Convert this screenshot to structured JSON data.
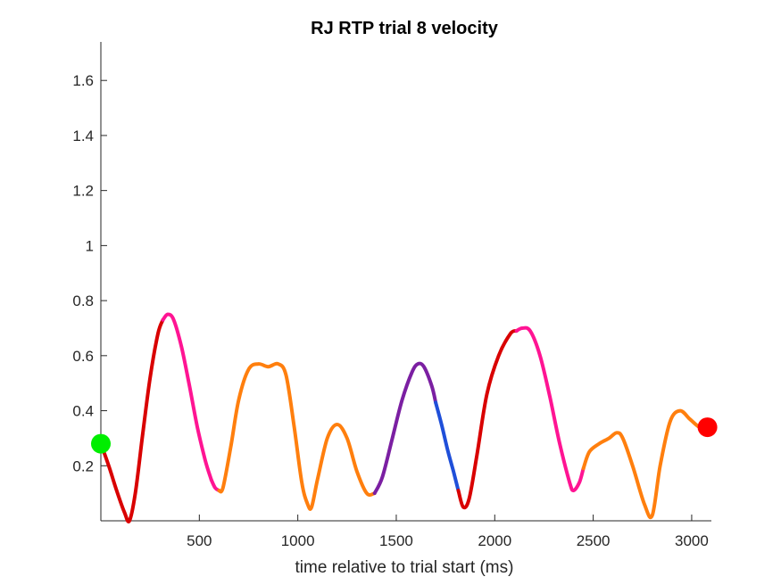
{
  "chart_data": {
    "type": "line",
    "title": "RJ  RTP trial 8 velocity",
    "xlabel": "time relative to trial start (ms)",
    "ylabel": "",
    "xlim": [
      0,
      3100
    ],
    "ylim": [
      0,
      1.74
    ],
    "x_ticks": [
      500,
      1000,
      1500,
      2000,
      2500,
      3000
    ],
    "y_ticks": [
      0.2,
      0.4,
      0.6,
      0.8,
      1,
      1.2,
      1.4,
      1.6
    ],
    "x_tick_labels": [
      "500",
      "1000",
      "1500",
      "2000",
      "2500",
      "3000"
    ],
    "y_tick_labels": [
      "0.2",
      "0.4",
      "0.6",
      "0.8",
      "1",
      "1.2",
      "1.4",
      "1.6"
    ],
    "grid": false,
    "series": [
      {
        "color": "#d90000",
        "x": [
          0,
          40,
          80,
          120,
          145,
          175,
          210,
          250,
          290,
          315
        ],
        "y": [
          0.28,
          0.2,
          0.11,
          0.03,
          0.0,
          0.1,
          0.3,
          0.52,
          0.68,
          0.73
        ]
      },
      {
        "color": "#ff1493",
        "x": [
          315,
          340,
          370,
          410,
          450,
          490,
          530,
          560
        ],
        "y": [
          0.73,
          0.75,
          0.73,
          0.63,
          0.49,
          0.34,
          0.22,
          0.15
        ]
      },
      {
        "color": "#ff1493",
        "x": [
          560,
          580,
          600
        ],
        "y": [
          0.15,
          0.12,
          0.11
        ]
      },
      {
        "color": "#ff7f0e",
        "x": [
          600,
          620,
          660,
          700,
          750,
          800,
          850,
          900,
          940,
          980,
          1020,
          1050,
          1070,
          1100,
          1150,
          1200,
          1250,
          1300,
          1350,
          1390
        ],
        "y": [
          0.11,
          0.12,
          0.27,
          0.44,
          0.55,
          0.57,
          0.56,
          0.57,
          0.53,
          0.35,
          0.14,
          0.06,
          0.05,
          0.15,
          0.3,
          0.35,
          0.3,
          0.18,
          0.1,
          0.1
        ]
      },
      {
        "color": "#7b1fa2",
        "x": [
          1390,
          1430,
          1480,
          1530,
          1580,
          1610,
          1640,
          1680,
          1700
        ],
        "y": [
          0.1,
          0.16,
          0.3,
          0.44,
          0.54,
          0.57,
          0.56,
          0.49,
          0.43
        ]
      },
      {
        "color": "#1f4fd9",
        "x": [
          1700,
          1730,
          1760,
          1790,
          1815
        ],
        "y": [
          0.43,
          0.35,
          0.26,
          0.18,
          0.11
        ]
      },
      {
        "color": "#d90000",
        "x": [
          1815,
          1840,
          1870,
          1910,
          1960,
          2020,
          2080,
          2110
        ],
        "y": [
          0.11,
          0.05,
          0.08,
          0.24,
          0.46,
          0.6,
          0.68,
          0.69
        ]
      },
      {
        "color": "#ff1493",
        "x": [
          2110,
          2140,
          2180,
          2230,
          2280,
          2330,
          2380,
          2400,
          2430,
          2450
        ],
        "y": [
          0.69,
          0.7,
          0.69,
          0.6,
          0.45,
          0.28,
          0.14,
          0.11,
          0.14,
          0.19
        ]
      },
      {
        "color": "#ff7f0e",
        "x": [
          2450,
          2480,
          2530,
          2580,
          2620,
          2650,
          2700,
          2760,
          2800,
          2840,
          2890,
          2940,
          2990,
          3040,
          3080
        ],
        "y": [
          0.19,
          0.25,
          0.28,
          0.3,
          0.32,
          0.3,
          0.2,
          0.06,
          0.02,
          0.2,
          0.36,
          0.4,
          0.37,
          0.34,
          0.34
        ]
      }
    ],
    "markers": [
      {
        "color": "#00ee00",
        "x": 0,
        "y": 0.28
      },
      {
        "color": "#ff0000",
        "x": 3080,
        "y": 0.34
      }
    ]
  }
}
